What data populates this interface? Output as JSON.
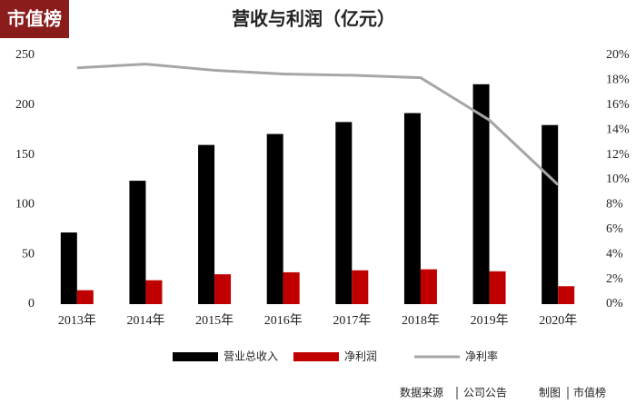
{
  "logo": "市值榜",
  "footer": [
    "数据来源",
    "公司公告",
    "制图",
    "市值榜"
  ],
  "chart_data": {
    "type": "bar-line",
    "title": "营收与利润（亿元）",
    "categories": [
      "2013年",
      "2014年",
      "2015年",
      "2016年",
      "2017年",
      "2018年",
      "2019年",
      "2020年"
    ],
    "series": [
      {
        "name": "营业总收入",
        "color": "#000000",
        "type": "bar",
        "values": [
          72,
          124,
          160,
          171,
          183,
          192,
          221,
          180
        ]
      },
      {
        "name": "净利润",
        "color": "#c00000",
        "type": "bar",
        "values": [
          14,
          24,
          30,
          32,
          34,
          35,
          33,
          18
        ]
      },
      {
        "name": "净利率",
        "color": "#a6a6a6",
        "type": "line",
        "axis": "y2",
        "values": [
          19.0,
          19.3,
          18.8,
          18.5,
          18.4,
          18.2,
          14.8,
          9.6
        ]
      }
    ],
    "ylim": [
      0,
      250
    ],
    "yticks": [
      0,
      50,
      100,
      150,
      200,
      250
    ],
    "y2lim": [
      0,
      20
    ],
    "y2ticks": [
      {
        "value": 0,
        "label": "0%"
      },
      {
        "value": 2,
        "label": "2%"
      },
      {
        "value": 4,
        "label": "4%"
      },
      {
        "value": 6,
        "label": "6%"
      },
      {
        "value": 8,
        "label": "8%"
      },
      {
        "value": 10,
        "label": "10%"
      },
      {
        "value": 12,
        "label": "12%"
      },
      {
        "value": 14,
        "label": "14%"
      },
      {
        "value": 16,
        "label": "16%"
      },
      {
        "value": 18,
        "label": "18%"
      },
      {
        "value": 20,
        "label": "20%"
      }
    ],
    "grid": false,
    "legend": "bottom"
  }
}
